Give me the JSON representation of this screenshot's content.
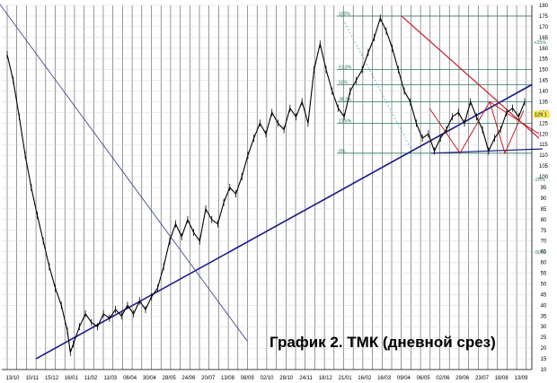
{
  "caption": "График 2. ТМК (дневной срез)",
  "chart_data": {
    "type": "candlestick",
    "title": "График 2. ТМК (дневной срез)",
    "ylim": [
      10,
      180
    ],
    "grid": true,
    "y_ticks": [
      10,
      15,
      20,
      25,
      30,
      35,
      40,
      45,
      50,
      55,
      60,
      65,
      70,
      75,
      80,
      85,
      90,
      95,
      100,
      105,
      110,
      115,
      120,
      125,
      130,
      135,
      140,
      145,
      150,
      155,
      160,
      165,
      170,
      175,
      180
    ],
    "x_ticks": [
      "13/10",
      "10/11",
      "15/12",
      "16/01",
      "11/02",
      "11/03",
      "06/04",
      "30/04",
      "28/05",
      "24/06",
      "20/07",
      "13/08",
      "08/09",
      "02/10",
      "28/10",
      "24/11",
      "18/12",
      "21/01",
      "16/02",
      "16/03",
      "09/04",
      "06/05",
      "02/06",
      "29/06",
      "23/07",
      "18/08",
      "13/09"
    ],
    "price_line": [
      [
        0,
        157
      ],
      [
        1,
        145
      ],
      [
        2,
        128
      ],
      [
        3,
        110
      ],
      [
        4,
        95
      ],
      [
        5,
        82
      ],
      [
        6,
        70
      ],
      [
        7,
        58
      ],
      [
        8,
        48
      ],
      [
        9,
        40
      ],
      [
        10,
        28
      ],
      [
        10.5,
        18
      ],
      [
        11,
        22
      ],
      [
        12,
        30
      ],
      [
        13,
        36
      ],
      [
        14,
        32
      ],
      [
        15,
        30
      ],
      [
        16,
        36
      ],
      [
        17,
        34
      ],
      [
        18,
        38
      ],
      [
        19,
        35
      ],
      [
        20,
        40
      ],
      [
        21,
        36
      ],
      [
        22,
        42
      ],
      [
        23,
        38
      ],
      [
        24,
        44
      ],
      [
        25,
        48
      ],
      [
        26,
        58
      ],
      [
        27,
        70
      ],
      [
        28,
        78
      ],
      [
        29,
        72
      ],
      [
        30,
        80
      ],
      [
        31,
        74
      ],
      [
        32,
        70
      ],
      [
        33,
        85
      ],
      [
        34,
        80
      ],
      [
        35,
        78
      ],
      [
        36,
        88
      ],
      [
        37,
        95
      ],
      [
        38,
        92
      ],
      [
        39,
        100
      ],
      [
        40,
        110
      ],
      [
        41,
        118
      ],
      [
        42,
        125
      ],
      [
        43,
        120
      ],
      [
        44,
        130
      ],
      [
        45,
        125
      ],
      [
        46,
        122
      ],
      [
        47,
        132
      ],
      [
        48,
        128
      ],
      [
        49,
        135
      ],
      [
        50,
        125
      ],
      [
        51,
        150
      ],
      [
        52,
        162
      ],
      [
        53,
        150
      ],
      [
        54,
        140
      ],
      [
        55,
        132
      ],
      [
        56,
        128
      ],
      [
        57,
        140
      ],
      [
        58,
        145
      ],
      [
        59,
        150
      ],
      [
        60,
        158
      ],
      [
        61,
        165
      ],
      [
        62,
        174
      ],
      [
        63,
        168
      ],
      [
        64,
        160
      ],
      [
        65,
        150
      ],
      [
        66,
        140
      ],
      [
        67,
        135
      ],
      [
        68,
        125
      ],
      [
        69,
        118
      ],
      [
        70,
        120
      ],
      [
        71,
        112
      ],
      [
        72,
        118
      ],
      [
        73,
        122
      ],
      [
        74,
        128
      ],
      [
        75,
        130
      ],
      [
        76,
        125
      ],
      [
        77,
        135
      ],
      [
        78,
        128
      ],
      [
        79,
        122
      ],
      [
        80,
        112
      ],
      [
        81,
        118
      ],
      [
        82,
        122
      ],
      [
        83,
        130
      ],
      [
        84,
        132
      ],
      [
        85,
        128
      ],
      [
        86,
        135
      ]
    ],
    "fib_levels": [
      {
        "label": "100%",
        "value": 175
      },
      {
        "label": "61.8%",
        "value": 150
      },
      {
        "label": "50%",
        "value": 143
      },
      {
        "label": "38.2%",
        "value": 135
      },
      {
        "label": "23.6%",
        "value": 125
      },
      {
        "label": "0%",
        "value": 111
      }
    ],
    "annotations": [
      {
        "text": "+25%",
        "y": 162
      },
      {
        "text": "-25%",
        "y": 98
      },
      {
        "text": "-50%",
        "y": 64
      }
    ],
    "last_price_label": "129.1",
    "last_price": 129.1
  }
}
